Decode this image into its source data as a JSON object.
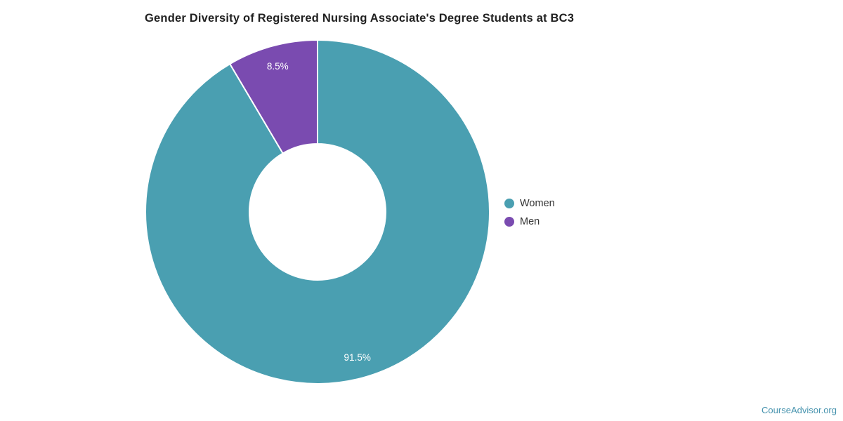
{
  "chart_data": {
    "type": "pie",
    "donut": true,
    "title": "Gender Diversity of Registered Nursing Associate's Degree Students at BC3",
    "labels": [
      "Women",
      "Men"
    ],
    "values": [
      91.5,
      8.5
    ],
    "value_labels": [
      "91.5%",
      "8.5%"
    ],
    "colors": [
      "#4A9FB1",
      "#7A4BB0"
    ],
    "start_angle_deg": 0,
    "direction": "clockwise",
    "inner_radius_ratio": 0.4,
    "legend_position": "right",
    "legend": [
      {
        "label": "Women",
        "color": "#4A9FB1"
      },
      {
        "label": "Men",
        "color": "#7A4BB0"
      }
    ],
    "slice_label_color": "#ffffff",
    "separator_color": "#ffffff"
  },
  "footer": {
    "text": "CourseAdvisor.org",
    "color": "#4693AE"
  }
}
